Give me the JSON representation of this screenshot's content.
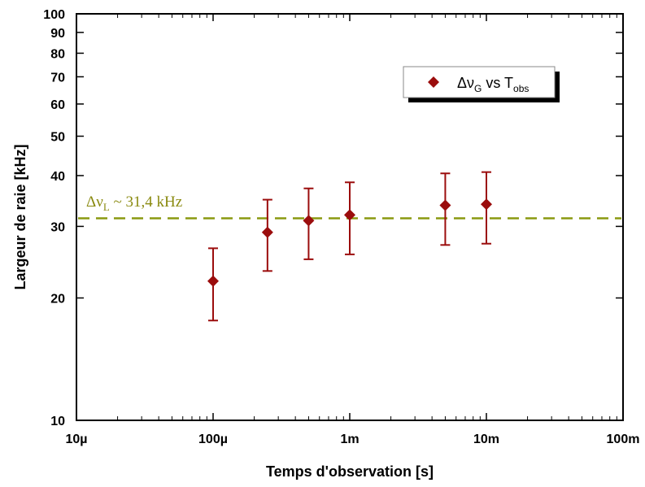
{
  "chart_data": {
    "type": "scatter",
    "xlabel": "Temps d'observation [s]",
    "ylabel": "Largeur de raie [kHz]",
    "xscale": "log",
    "yscale": "log",
    "xlim": [
      1e-05,
      0.1
    ],
    "ylim": [
      10,
      100
    ],
    "x_ticks": [
      {
        "value": 1e-05,
        "label": "10µ"
      },
      {
        "value": 0.0001,
        "label": "100µ"
      },
      {
        "value": 0.001,
        "label": "1m"
      },
      {
        "value": 0.01,
        "label": "10m"
      },
      {
        "value": 0.1,
        "label": "100m"
      }
    ],
    "y_ticks": [
      10,
      20,
      30,
      40,
      50,
      60,
      70,
      80,
      90,
      100
    ],
    "grid": false,
    "legend": {
      "position": "top-right"
    },
    "series": [
      {
        "legend_main": "Δν",
        "legend_sub1": "G",
        "legend_mid": " vs T",
        "legend_sub2": "obs",
        "color": "#9b0d0d",
        "marker": "diamond",
        "points": [
          {
            "x": 0.0001,
            "y": 22.0,
            "err_low": 17.6,
            "err_high": 26.5
          },
          {
            "x": 0.00025,
            "y": 29.0,
            "err_low": 23.3,
            "err_high": 34.9
          },
          {
            "x": 0.0005,
            "y": 31.0,
            "err_low": 24.9,
            "err_high": 37.2
          },
          {
            "x": 0.001,
            "y": 32.0,
            "err_low": 25.6,
            "err_high": 38.5
          },
          {
            "x": 0.005,
            "y": 33.8,
            "err_low": 27.0,
            "err_high": 40.5
          },
          {
            "x": 0.01,
            "y": 34.0,
            "err_low": 27.2,
            "err_high": 40.8
          }
        ]
      }
    ],
    "reference_line": {
      "y": 31.4,
      "color": "#8a9a10",
      "style": "dashed",
      "label_main": "Δν",
      "label_sub": "L",
      "label_rest": " ~ 31,4 kHz"
    }
  }
}
